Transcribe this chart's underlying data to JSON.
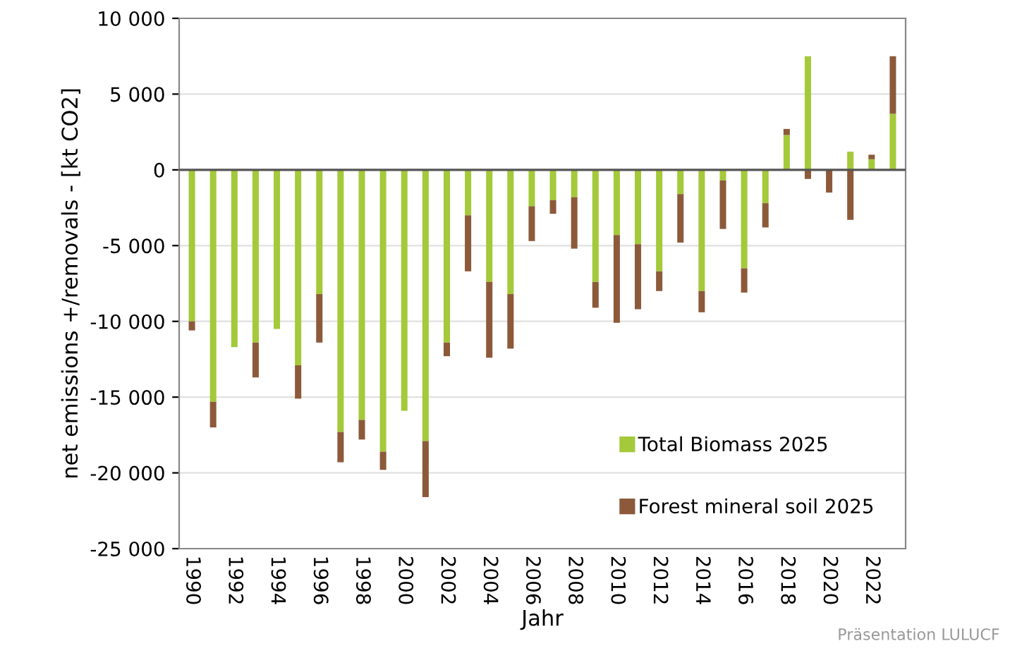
{
  "chart_data": {
    "type": "bar",
    "stacked": true,
    "xlabel": "Jahr",
    "ylabel": "net emissions +/removals - [kt CO2]",
    "categories": [
      "1990",
      null,
      "1992",
      null,
      "1994",
      null,
      "1996",
      null,
      "1998",
      null,
      "2000",
      null,
      "2002",
      null,
      "2004",
      null,
      "2006",
      null,
      "2008",
      null,
      "2010",
      null,
      "2012",
      null,
      "2014",
      null,
      "2016",
      null,
      "2018",
      null,
      "2020",
      null,
      "2022",
      null
    ],
    "series": [
      {
        "name": "Total Biomass 2025",
        "color": "#a4c93a",
        "values": [
          -10000,
          -15300,
          -11700,
          -11400,
          -10500,
          -12900,
          -8200,
          -17300,
          -16500,
          -18600,
          -15900,
          -17900,
          -11400,
          -3000,
          -7400,
          -8200,
          -2400,
          -2000,
          -1800,
          -7400,
          -4300,
          -4900,
          -6700,
          -1600,
          -8000,
          -700,
          -6500,
          -2200,
          2300,
          7500,
          0,
          1200,
          700,
          3700
        ]
      },
      {
        "name": "Forest mineral soil 2025",
        "color": "#8c5a3a",
        "values": [
          -600,
          -1700,
          null,
          -2300,
          null,
          -2200,
          -3200,
          -2000,
          -1300,
          -1200,
          0,
          -3700,
          -900,
          -3700,
          -5000,
          -3600,
          -2300,
          -900,
          -3400,
          -1700,
          -5800,
          -4300,
          -1300,
          -3200,
          -1400,
          -3200,
          -1600,
          -1600,
          400,
          -600,
          -1500,
          -3300,
          300,
          3800
        ]
      }
    ],
    "ylim": [
      -25000,
      10000
    ],
    "yticks": [
      {
        "value": -25000,
        "label": "-25 000"
      },
      {
        "value": -20000,
        "label": "-20 000"
      },
      {
        "value": -15000,
        "label": "-15 000"
      },
      {
        "value": -10000,
        "label": "-10 000"
      },
      {
        "value": -5000,
        "label": "-5 000"
      },
      0,
      {
        "value": 5000,
        "label": "5 000"
      },
      {
        "value": 10000,
        "label": "10 000"
      }
    ],
    "grid": "y",
    "legend": "bottom right",
    "annotations": [
      "Präsentation LULUCF"
    ]
  }
}
